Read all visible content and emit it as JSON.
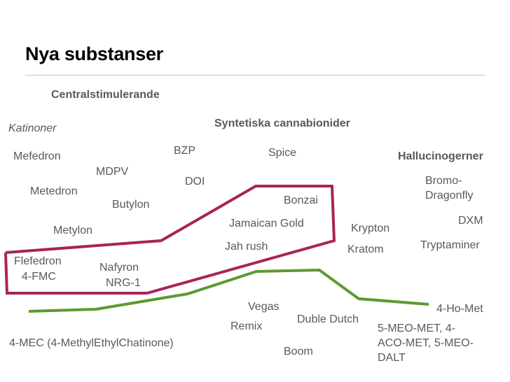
{
  "slide": {
    "title": "Nya substanser",
    "categories": {
      "centralstimulerande": "Centralstimulerande",
      "katinoner": "Katinoner",
      "syntetiska_cannabinoider": "Syntetiska cannabionider",
      "hallucinogener": "Hallucinogerner"
    },
    "substances": {
      "mefedron": "Mefedron",
      "mdpv": "MDPV",
      "metedron": "Metedron",
      "butylon": "Butylon",
      "metylon": "Metylon",
      "flefedron": "Flefedron",
      "fmc": "4-FMC",
      "nafyron": "Nafyron",
      "nrg1": "NRG-1",
      "bzp": "BZP",
      "doi": "DOI",
      "spice": "Spice",
      "bonzai": "Bonzai",
      "jamaican_gold": "Jamaican Gold",
      "jah_rush": "Jah rush",
      "krypton": "Krypton",
      "kratom": "Kratom",
      "bromo_1": "Bromo-",
      "bromo_2": "Dragonfly",
      "dxm": "DXM",
      "tryptaminer": "Tryptaminer",
      "vegas": "Vegas",
      "remix": "Remix",
      "duble_dutch": "Duble Dutch",
      "boom": "Boom",
      "four_ho_met": "4-Ho-Met",
      "meo_1": "5-MEO-MET, 4-",
      "meo_2": "ACO-MET, 5-MEO-",
      "meo_3": "DALT",
      "four_mec": "4-MEC (4-MethylEthylChatinone)"
    },
    "colors": {
      "magenta_line": "#a8245a",
      "green_line": "#5c9a2e",
      "text": "#595959",
      "title": "#000000"
    }
  }
}
